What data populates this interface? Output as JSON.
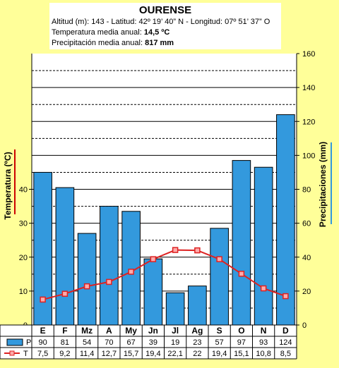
{
  "header": {
    "title": "OURENSE",
    "location_line": "Altitud (m): 143 - Latitud: 42º 19’ 40” N - Longitud: 07º 51’ 37” O",
    "temp_label": "Temperatura media anual:",
    "temp_value": "14,5 ºC",
    "precip_label": "Precipitación media anual:",
    "precip_value": "817 mm"
  },
  "chart_data": {
    "type": "bar",
    "categories": [
      "E",
      "F",
      "Mz",
      "A",
      "My",
      "Jn",
      "Jl",
      "Ag",
      "S",
      "O",
      "N",
      "D"
    ],
    "series": [
      {
        "name": "P",
        "kind": "bar",
        "axis": "right",
        "color": "#3399dd",
        "values": [
          90,
          81,
          54,
          70,
          67,
          39,
          19,
          23,
          57,
          97,
          93,
          124
        ],
        "labels": [
          "90",
          "81",
          "54",
          "70",
          "67",
          "39",
          "19",
          "23",
          "57",
          "97",
          "93",
          "124"
        ]
      },
      {
        "name": "T",
        "kind": "line",
        "axis": "left",
        "color": "#dd2222",
        "values": [
          7.5,
          9.2,
          11.4,
          12.7,
          15.7,
          19.4,
          22.1,
          22,
          19.4,
          15.1,
          10.8,
          8.5
        ],
        "labels": [
          "7,5",
          "9,2",
          "11,4",
          "12,7",
          "15,7",
          "19,4",
          "22,1",
          "22",
          "19,4",
          "15,1",
          "10,8",
          "8,5"
        ]
      }
    ],
    "ylabel_left": "Temperatura (ºC)",
    "ylabel_right": "Precipitaciones (mm)",
    "ylim_left": [
      0,
      80
    ],
    "ylim_right": [
      0,
      160
    ],
    "yticks_left": [
      0,
      10,
      20,
      30,
      40
    ],
    "yticks_right": [
      0,
      20,
      40,
      60,
      80,
      100,
      120,
      140,
      160
    ],
    "grid": true
  }
}
